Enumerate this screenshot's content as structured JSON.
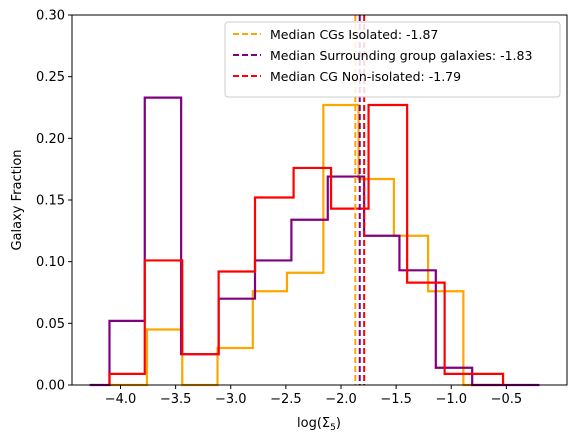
{
  "chart_data": {
    "type": "histogram",
    "xlabel": "log(Σ5)",
    "ylabel": "Galaxy Fraction",
    "xlim": [
      -4.44,
      0.05
    ],
    "ylim": [
      0.0,
      0.3
    ],
    "xticks": [
      -4.0,
      -3.5,
      -3.0,
      -2.5,
      -2.0,
      -1.5,
      -1.0,
      -0.5
    ],
    "xtick_labels": [
      "−4.0",
      "−3.5",
      "−3.0",
      "−2.5",
      "−2.0",
      "−1.5",
      "−1.0",
      "−0.5"
    ],
    "yticks": [
      0.0,
      0.05,
      0.1,
      0.15,
      0.2,
      0.25,
      0.3
    ],
    "ytick_labels": [
      "0.00",
      "0.05",
      "0.10",
      "0.15",
      "0.20",
      "0.25",
      "0.30"
    ],
    "grid": false,
    "legend_position": "top-right",
    "series": [
      {
        "name": "CGs Isolated",
        "color": "#FFA500",
        "edges": [
          -4.09,
          -3.76,
          -3.44,
          -3.12,
          -2.8,
          -2.49,
          -2.16,
          -1.84,
          -1.52,
          -1.21,
          -0.89,
          -0.57
        ],
        "values": [
          0.0,
          0.045,
          0.0,
          0.03,
          0.076,
          0.091,
          0.227,
          0.167,
          0.121,
          0.076,
          0.0
        ]
      },
      {
        "name": "Surrounding group galaxies",
        "color": "#800080",
        "edges": [
          -4.28,
          -4.1,
          -3.78,
          -3.45,
          -3.11,
          -2.78,
          -2.45,
          -2.12,
          -1.79,
          -1.47,
          -1.14,
          -0.81,
          -0.2
        ],
        "values": [
          0.0,
          0.052,
          0.233,
          0.025,
          0.07,
          0.101,
          0.134,
          0.169,
          0.121,
          0.093,
          0.014,
          0.0
        ]
      },
      {
        "name": "CG Non-isolated",
        "color": "#FF0000",
        "edges": [
          -4.1,
          -3.78,
          -3.44,
          -3.11,
          -2.78,
          -2.43,
          -2.09,
          -1.75,
          -1.4,
          -1.06,
          -0.53
        ],
        "values": [
          0.009,
          0.101,
          0.025,
          0.092,
          0.152,
          0.176,
          0.143,
          0.227,
          0.083,
          0.009
        ]
      }
    ],
    "medians": [
      {
        "label": "Median CGs Isolated:  -1.87",
        "value": -1.87,
        "color": "#FFA500"
      },
      {
        "label": "Median Surrounding group galaxies: -1.83",
        "value": -1.83,
        "color": "#800080"
      },
      {
        "label": "Median CG Non-isolated: -1.79",
        "value": -1.79,
        "color": "#FF0000"
      }
    ]
  }
}
